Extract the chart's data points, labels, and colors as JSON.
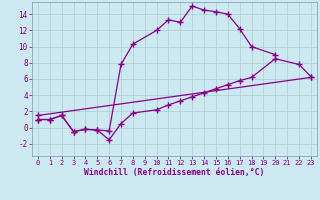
{
  "xlabel": "Windchill (Refroidissement éolien,°C)",
  "background_color": "#cce8f0",
  "grid_color": "#aacccc",
  "line_color": "#880088",
  "tick_color": "#880088",
  "xlim": [
    -0.5,
    23.5
  ],
  "ylim": [
    -3.5,
    15.5
  ],
  "xticks": [
    0,
    1,
    2,
    3,
    4,
    5,
    6,
    7,
    8,
    9,
    10,
    11,
    12,
    13,
    14,
    15,
    16,
    17,
    18,
    19,
    20,
    21,
    22,
    23
  ],
  "yticks": [
    -2,
    0,
    2,
    4,
    6,
    8,
    10,
    12,
    14
  ],
  "series": [
    {
      "x": [
        0,
        1,
        2,
        3,
        4,
        5,
        6,
        7,
        8,
        10,
        11,
        12,
        13,
        14,
        15,
        16,
        17,
        18,
        20
      ],
      "y": [
        1,
        1,
        1.5,
        -0.5,
        -0.2,
        -0.3,
        -0.4,
        7.8,
        10.3,
        12.0,
        13.3,
        13.0,
        15.0,
        14.5,
        14.3,
        14.0,
        12.2,
        10.0,
        9.0
      ]
    },
    {
      "x": [
        0,
        1,
        2,
        3,
        4,
        5,
        6,
        7,
        8,
        10,
        11,
        12,
        13,
        14,
        15,
        16,
        17,
        18,
        20,
        22,
        23
      ],
      "y": [
        1,
        1,
        1.5,
        -0.5,
        -0.2,
        -0.3,
        -1.5,
        0.5,
        1.8,
        2.2,
        2.8,
        3.3,
        3.8,
        4.3,
        4.8,
        5.3,
        5.8,
        6.2,
        8.5,
        7.8,
        6.3
      ]
    },
    {
      "x": [
        0,
        23
      ],
      "y": [
        1.5,
        6.2
      ]
    }
  ]
}
